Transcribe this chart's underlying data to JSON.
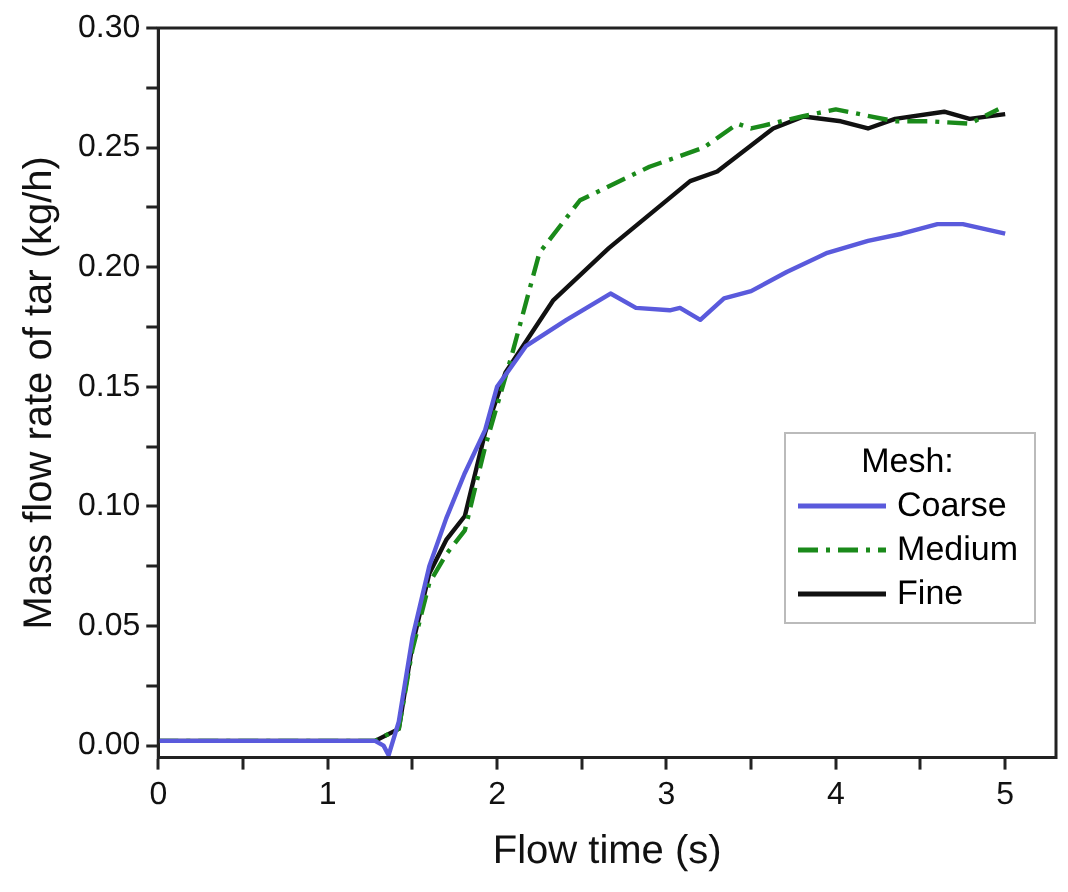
{
  "chart_data": {
    "type": "line",
    "xlabel": "Flow time (s)",
    "ylabel": "Mass flow rate of tar (kg/h)",
    "legend_title": "Mesh:",
    "legend": "right",
    "grid": false,
    "marker": "none",
    "xlim": [
      0,
      5.3
    ],
    "xticks": [
      0,
      {
        "value": 0.5,
        "label": null
      },
      1,
      {
        "value": 1.5,
        "label": null
      },
      2,
      {
        "value": 2.5,
        "label": null
      },
      3,
      {
        "value": 3.5,
        "label": null
      },
      4,
      {
        "value": 4.5,
        "label": null
      },
      5
    ],
    "ylim": [
      -0.005,
      0.3
    ],
    "yticks": [
      {
        "value": 0,
        "label": "0.00"
      },
      {
        "value": 0.025,
        "label": null
      },
      {
        "value": 0.05,
        "label": "0.05"
      },
      {
        "value": 0.075,
        "label": null
      },
      {
        "value": 0.1,
        "label": "0.10"
      },
      {
        "value": 0.125,
        "label": null
      },
      {
        "value": 0.15,
        "label": "0.15"
      },
      {
        "value": 0.175,
        "label": null
      },
      {
        "value": 0.2,
        "label": "0.20"
      },
      {
        "value": 0.225,
        "label": null
      },
      {
        "value": 0.25,
        "label": "0.25"
      },
      {
        "value": 0.275,
        "label": null
      },
      {
        "value": 0.3,
        "label": "0.30"
      }
    ],
    "series": [
      {
        "name": "Coarse",
        "color": "#5a5adc",
        "line_style": "solid",
        "x": [
          0,
          1.28,
          1.33,
          1.36,
          1.42,
          1.5,
          1.6,
          1.7,
          1.81,
          1.93,
          2.0,
          2.17,
          2.41,
          2.67,
          2.82,
          3.02,
          3.08,
          3.2,
          3.34,
          3.5,
          3.71,
          3.95,
          4.19,
          4.39,
          4.6,
          4.75,
          5.0
        ],
        "values": [
          0.002,
          0.002,
          0.0,
          -0.004,
          0.01,
          0.045,
          0.075,
          0.095,
          0.114,
          0.132,
          0.15,
          0.167,
          0.178,
          0.189,
          0.183,
          0.182,
          0.183,
          0.178,
          0.187,
          0.19,
          0.198,
          0.206,
          0.211,
          0.214,
          0.218,
          0.218,
          0.214
        ]
      },
      {
        "name": "Medium",
        "color": "#1a8a1a",
        "line_style": "dashed",
        "x": [
          0,
          1.28,
          1.42,
          1.5,
          1.6,
          1.7,
          1.81,
          1.93,
          2.09,
          2.25,
          2.49,
          2.9,
          3.22,
          3.42,
          3.5,
          3.8,
          4.0,
          4.35,
          4.55,
          4.79,
          4.96
        ],
        "values": [
          0.002,
          0.002,
          0.007,
          0.04,
          0.068,
          0.08,
          0.09,
          0.125,
          0.164,
          0.206,
          0.228,
          0.242,
          0.25,
          0.26,
          0.258,
          0.263,
          0.266,
          0.261,
          0.261,
          0.26,
          0.266
        ]
      },
      {
        "name": "Fine",
        "color": "#111111",
        "line_style": "solid",
        "x": [
          0,
          1.28,
          1.42,
          1.5,
          1.6,
          1.7,
          1.81,
          1.93,
          2.05,
          2.33,
          2.66,
          3.14,
          3.3,
          3.63,
          3.81,
          4.03,
          4.19,
          4.35,
          4.64,
          4.79,
          5.0
        ],
        "values": [
          0.002,
          0.002,
          0.007,
          0.042,
          0.072,
          0.086,
          0.096,
          0.131,
          0.156,
          0.186,
          0.208,
          0.236,
          0.24,
          0.258,
          0.263,
          0.261,
          0.258,
          0.262,
          0.265,
          0.262,
          0.264
        ]
      }
    ]
  }
}
